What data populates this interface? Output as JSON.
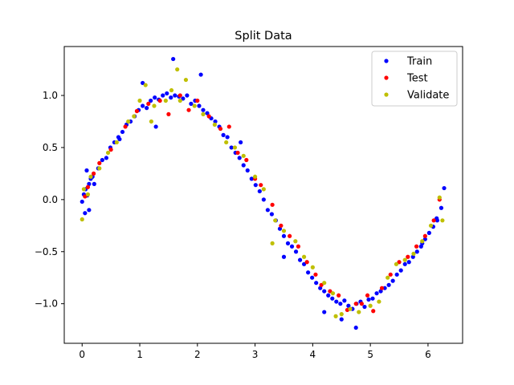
{
  "chart_data": {
    "type": "scatter",
    "title": "Split Data",
    "xlabel": "",
    "ylabel": "",
    "xlim": [
      -0.31,
      6.6
    ],
    "ylim": [
      -1.38,
      1.47
    ],
    "xticks": [
      0,
      1,
      2,
      3,
      4,
      5,
      6
    ],
    "yticks": [
      -1.0,
      -0.5,
      0.0,
      0.5,
      1.0
    ],
    "xtick_labels": [
      "0",
      "1",
      "2",
      "3",
      "4",
      "5",
      "6"
    ],
    "ytick_labels": [
      "−1.0",
      "−0.5",
      "0.0",
      "0.5",
      "1.0"
    ],
    "grid": false,
    "legend_position": "top-right",
    "series": [
      {
        "name": "Train",
        "color": "#0000ff",
        "x": [
          0.0,
          0.03,
          0.06,
          0.09,
          0.12,
          0.15,
          0.18,
          0.21,
          0.28,
          0.35,
          0.42,
          0.49,
          0.56,
          0.63,
          0.7,
          0.77,
          0.84,
          0.91,
          0.98,
          1.05,
          1.12,
          1.19,
          1.26,
          1.33,
          1.4,
          1.47,
          1.54,
          1.61,
          1.68,
          1.75,
          1.82,
          1.89,
          1.96,
          2.03,
          2.1,
          2.17,
          2.24,
          2.31,
          2.38,
          2.45,
          2.52,
          2.59,
          2.66,
          2.73,
          2.8,
          2.87,
          2.94,
          3.01,
          3.08,
          3.15,
          3.22,
          3.29,
          3.36,
          3.43,
          3.5,
          3.57,
          3.64,
          3.71,
          3.78,
          3.85,
          3.92,
          3.99,
          4.06,
          4.13,
          4.2,
          4.27,
          4.34,
          4.41,
          4.48,
          4.55,
          4.62,
          4.69,
          4.76,
          4.83,
          4.9,
          4.97,
          5.04,
          5.11,
          5.18,
          5.25,
          5.32,
          5.39,
          5.46,
          5.53,
          5.6,
          5.67,
          5.74,
          5.81,
          5.88,
          5.95,
          6.02,
          6.09,
          6.16,
          6.23,
          6.28,
          1.58,
          1.28,
          2.06,
          0.05,
          0.12,
          4.75,
          4.2,
          0.08,
          1.05,
          2.75,
          3.5,
          4.5,
          5.9,
          6.15,
          0.65
        ],
        "y": [
          -0.02,
          0.05,
          0.1,
          0.04,
          0.15,
          0.2,
          0.22,
          0.15,
          0.3,
          0.38,
          0.4,
          0.5,
          0.55,
          0.6,
          0.65,
          0.72,
          0.75,
          0.8,
          0.86,
          0.9,
          0.88,
          0.95,
          0.98,
          0.96,
          1.0,
          1.02,
          0.98,
          1.0,
          0.99,
          0.97,
          1.0,
          0.92,
          0.95,
          0.9,
          0.86,
          0.83,
          0.78,
          0.75,
          0.7,
          0.62,
          0.6,
          0.5,
          0.45,
          0.4,
          0.33,
          0.28,
          0.2,
          0.14,
          0.08,
          0.0,
          -0.1,
          -0.14,
          -0.2,
          -0.28,
          -0.35,
          -0.42,
          -0.45,
          -0.5,
          -0.58,
          -0.62,
          -0.7,
          -0.75,
          -0.8,
          -0.85,
          -0.88,
          -0.92,
          -0.95,
          -0.98,
          -1.0,
          -0.97,
          -1.02,
          -1.05,
          -1.0,
          -0.98,
          -1.03,
          -0.96,
          -0.95,
          -0.9,
          -0.88,
          -0.85,
          -0.82,
          -0.78,
          -0.72,
          -0.68,
          -0.62,
          -0.6,
          -0.55,
          -0.5,
          -0.45,
          -0.38,
          -0.32,
          -0.26,
          -0.2,
          -0.08,
          0.11,
          1.35,
          0.7,
          1.2,
          -0.13,
          -0.1,
          -1.23,
          -1.08,
          0.28,
          1.12,
          0.55,
          -0.55,
          -1.15,
          -0.42,
          -0.18,
          0.58
        ]
      },
      {
        "name": "Test",
        "color": "#ff0000",
        "x": [
          0.05,
          0.1,
          0.2,
          0.3,
          0.5,
          0.75,
          0.95,
          1.15,
          1.35,
          1.5,
          1.7,
          1.85,
          2.0,
          2.2,
          2.4,
          2.55,
          2.7,
          2.85,
          3.0,
          3.1,
          3.3,
          3.45,
          3.6,
          3.75,
          3.9,
          4.05,
          4.15,
          4.3,
          4.45,
          4.6,
          4.75,
          4.85,
          4.95,
          5.05,
          5.2,
          5.35,
          5.5,
          5.65,
          5.8,
          5.95,
          6.1,
          6.2
        ],
        "y": [
          0.03,
          0.12,
          0.25,
          0.35,
          0.48,
          0.7,
          0.85,
          0.92,
          0.95,
          0.82,
          1.0,
          0.86,
          0.95,
          0.8,
          0.68,
          0.7,
          0.45,
          0.38,
          0.2,
          0.14,
          -0.05,
          -0.25,
          -0.35,
          -0.45,
          -0.6,
          -0.72,
          -0.82,
          -0.88,
          -0.92,
          -1.06,
          -1.0,
          -1.0,
          -0.92,
          -1.07,
          -0.85,
          -0.72,
          -0.6,
          -0.55,
          -0.45,
          -0.35,
          -0.2,
          0.0
        ]
      },
      {
        "name": "Validate",
        "color": "#bfbf00",
        "x": [
          0.0,
          0.1,
          0.15,
          0.3,
          0.45,
          0.6,
          0.8,
          0.9,
          1.0,
          1.1,
          1.25,
          1.45,
          1.55,
          1.65,
          1.8,
          1.95,
          2.1,
          2.3,
          2.5,
          2.65,
          2.8,
          3.0,
          3.15,
          3.35,
          3.5,
          3.7,
          3.85,
          4.0,
          4.2,
          4.35,
          4.5,
          4.65,
          4.8,
          5.0,
          5.15,
          5.3,
          5.45,
          5.6,
          5.75,
          5.9,
          6.05,
          6.2,
          6.25,
          1.7,
          4.4,
          0.03,
          1.2,
          3.3
        ],
        "y": [
          -0.19,
          0.05,
          0.22,
          0.3,
          0.45,
          0.55,
          0.75,
          0.8,
          0.95,
          1.1,
          0.9,
          0.95,
          1.05,
          1.25,
          1.15,
          0.9,
          0.82,
          0.72,
          0.55,
          0.5,
          0.42,
          0.22,
          0.1,
          -0.2,
          -0.3,
          -0.4,
          -0.55,
          -0.65,
          -0.8,
          -0.9,
          -1.1,
          -1.05,
          -1.08,
          -1.02,
          -0.98,
          -0.75,
          -0.62,
          -0.58,
          -0.52,
          -0.4,
          -0.25,
          0.02,
          -0.2,
          0.95,
          -1.12,
          0.1,
          0.75,
          -0.42
        ]
      }
    ]
  }
}
